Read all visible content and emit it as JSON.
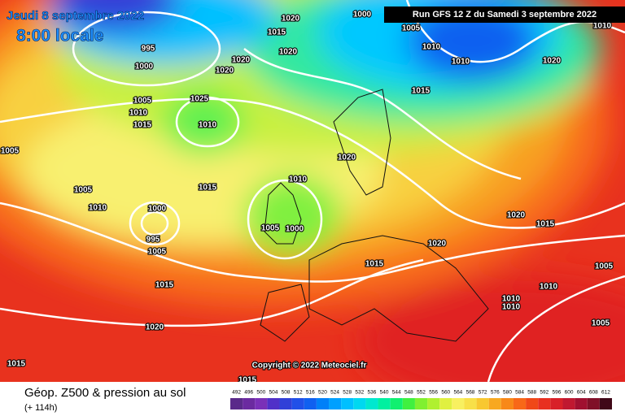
{
  "header": {
    "date": "Jeudi 8 septembre 2022",
    "time": "8:00 locale",
    "run": "Run GFS 12 Z du Samedi 3 septembre 2022"
  },
  "copyright": "Copyright © 2022 Meteociel.fr",
  "footer": {
    "title": "Géop. Z500 & pression au sol",
    "lead": "(+ 114h)"
  },
  "isobar_labels": [
    "1000",
    "1020",
    "1015",
    "1020",
    "995",
    "1000",
    "1020",
    "1020",
    "1005",
    "1010",
    "1010",
    "1020",
    "1010",
    "1015",
    "1025",
    "1010",
    "1005",
    "1010",
    "1015",
    "1005",
    "1020",
    "1005",
    "1015",
    "1010",
    "1010",
    "1005",
    "1000",
    "1000",
    "995",
    "1005",
    "1020",
    "1015",
    "1020",
    "1015",
    "1015",
    "1010",
    "1010",
    "1010",
    "1005",
    "1005",
    "1020",
    "1015",
    "1015"
  ],
  "scale": {
    "labels": [
      "492",
      "496",
      "500",
      "504",
      "508",
      "512",
      "516",
      "520",
      "524",
      "528",
      "532",
      "536",
      "540",
      "544",
      "548",
      "552",
      "556",
      "560",
      "564",
      "568",
      "572",
      "576",
      "580",
      "584",
      "588",
      "592",
      "596",
      "600",
      "604",
      "608",
      "612"
    ],
    "colors": [
      "#5a2a8a",
      "#6b2aa0",
      "#7a30b8",
      "#5030c8",
      "#3040d8",
      "#2050e8",
      "#1060f0",
      "#0080f8",
      "#00a0ff",
      "#00c0ff",
      "#00d8f0",
      "#00e8d0",
      "#00f0a0",
      "#10f070",
      "#40f040",
      "#80f030",
      "#b0f030",
      "#e0f040",
      "#f8f060",
      "#f8e048",
      "#f8c830",
      "#f8a820",
      "#f88818",
      "#f86818",
      "#f04818",
      "#e83020",
      "#d82028",
      "#c01830",
      "#a01030",
      "#801028",
      "#400818"
    ]
  }
}
